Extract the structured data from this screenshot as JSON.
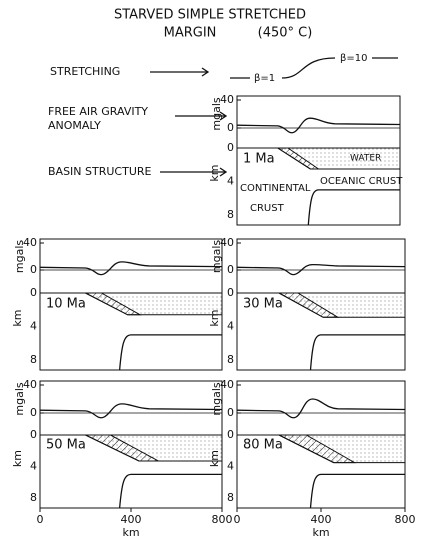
{
  "title": {
    "line1": "STARVED SIMPLE STRETCHED",
    "line2": "MARGIN",
    "temperature": "(450° C)"
  },
  "labels": {
    "stretching": "STRETCHING",
    "beta_left": "β=1",
    "beta_right": "β=10",
    "gravity_line1": "FREE AIR GRAVITY",
    "gravity_line2": "ANOMALY",
    "basin": "BASIN STRUCTURE",
    "water": "WATER",
    "continental_line1": "CONTINENTAL",
    "continental_line2": "CRUST",
    "oceanic": "OCEANIC CRUST"
  },
  "axes": {
    "gravity_unit": "mgals",
    "gravity_ticks": [
      "40",
      "0"
    ],
    "depth_unit": "km",
    "depth_ticks": [
      "0",
      "4",
      "8"
    ],
    "distance_unit": "km",
    "distance_ticks": [
      "0",
      "400",
      "800"
    ]
  },
  "panels": [
    {
      "time": "1 Ma"
    },
    {
      "time": "10 Ma"
    },
    {
      "time": "30 Ma"
    },
    {
      "time": "50 Ma"
    },
    {
      "time": "80 Ma"
    }
  ]
}
